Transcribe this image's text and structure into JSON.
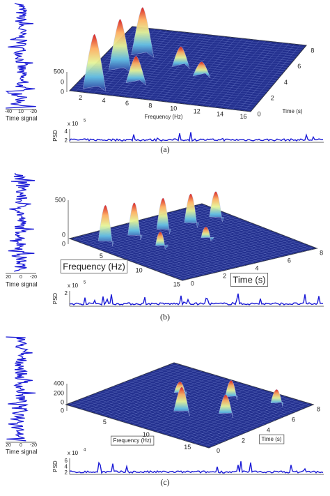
{
  "panels": [
    {
      "caption": "(a)",
      "time_signal": {
        "label": "Time signal",
        "ticks": [
          "-40",
          "10",
          "-20"
        ]
      },
      "surface": {
        "z_ticks": [
          "500",
          "0",
          "0"
        ],
        "frequency_label": "Frequency (Hz)",
        "frequency_ticks": [
          "2",
          "4",
          "6",
          "8",
          "10",
          "12",
          "14",
          "16"
        ],
        "time_label": "Time (s)",
        "time_ticks": [
          "0",
          "2",
          "4",
          "6",
          "8"
        ],
        "boxed_labels": false
      },
      "psd": {
        "label": "PSD",
        "multiplier": "x 10",
        "exponent": "5",
        "ticks": [
          "4",
          "2"
        ]
      }
    },
    {
      "caption": "(b)",
      "time_signal": {
        "label": "Time signal",
        "ticks": [
          "20",
          "0",
          "-20"
        ]
      },
      "surface": {
        "z_ticks": [
          "500",
          "0",
          "0"
        ],
        "frequency_label": "Frequency (Hz)",
        "frequency_ticks": [
          "5",
          "10",
          "15"
        ],
        "time_label": "Time (s)",
        "time_ticks": [
          "0",
          "2",
          "4",
          "6",
          "8"
        ],
        "boxed_labels": true
      },
      "psd": {
        "label": "PSD",
        "multiplier": "x 10",
        "exponent": "5",
        "ticks": [
          "2"
        ]
      }
    },
    {
      "caption": "(c)",
      "time_signal": {
        "label": "Time signal",
        "ticks": [
          "20",
          "0",
          "-20"
        ]
      },
      "surface": {
        "z_ticks": [
          "400",
          "200",
          "0",
          "0"
        ],
        "frequency_label": "Frequency (Hz)",
        "frequency_ticks": [
          "5",
          "10",
          "15"
        ],
        "time_label": "Time (s)",
        "time_ticks": [
          "0",
          "2",
          "4",
          "6",
          "8"
        ],
        "boxed_labels": true
      },
      "psd": {
        "label": "PSD",
        "multiplier": "x 10",
        "exponent": "4",
        "ticks": [
          "6",
          "4",
          "2"
        ]
      }
    }
  ]
}
